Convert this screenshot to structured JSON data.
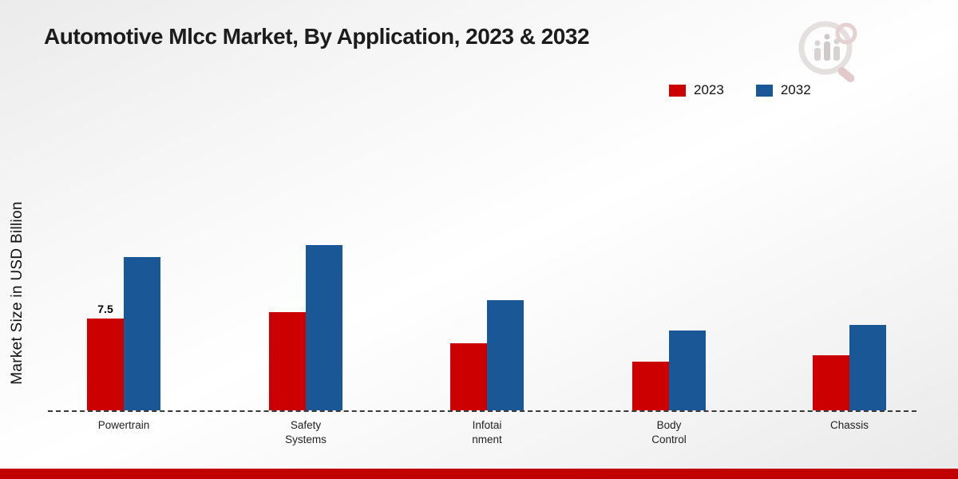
{
  "page": {
    "title": "Automotive Mlcc Market, By Application, 2023 & 2032",
    "ylabel": "Market Size in USD Billion",
    "footer_color": "#c10000",
    "baseline_style": "dashed"
  },
  "legend": [
    {
      "label": "2023",
      "color": "#cc0001"
    },
    {
      "label": "2032",
      "color": "#1a5796"
    }
  ],
  "chart_data": {
    "type": "bar",
    "title": "Automotive Mlcc Market, By Application, 2023 & 2032",
    "xlabel": "",
    "ylabel": "Market Size in USD Billion",
    "ylim": [
      0,
      15
    ],
    "grid": false,
    "legend_position": "top-right",
    "categories": [
      "Powertrain",
      "Safety Systems",
      "Infotainment",
      "Body Control",
      "Chassis"
    ],
    "category_label_lines": [
      [
        "Powertrain"
      ],
      [
        "Safety",
        "Systems"
      ],
      [
        "Infotai",
        "nment"
      ],
      [
        "Body",
        "Control"
      ],
      [
        "Chassis"
      ]
    ],
    "series": [
      {
        "name": "2023",
        "color": "#cc0001",
        "values": [
          7.5,
          8.0,
          5.5,
          4.0,
          4.5
        ]
      },
      {
        "name": "2032",
        "color": "#1a5796",
        "values": [
          12.5,
          13.5,
          9.0,
          6.5,
          7.0
        ]
      }
    ],
    "data_labels": [
      {
        "text": "7.5",
        "series_index": 0,
        "category_index": 0
      }
    ]
  }
}
